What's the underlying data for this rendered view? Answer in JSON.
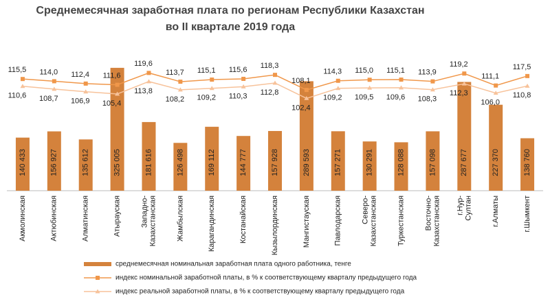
{
  "chart_data": {
    "type": "bar",
    "title": [
      "Среднемесячная заработная плата по регионам Республики Казахстан",
      "во II квартале 2019 года"
    ],
    "categories": [
      "Акмолинская",
      "Актюбинская",
      "Алматинская",
      "Атырауская",
      "Западно-Казахстанская",
      "Жамбылская",
      "Карагандинская",
      "Костанайская",
      "Кызылординская",
      "Мангистауская",
      "Павлодарская",
      "Северо-Казахстанская",
      "Туркестанская",
      "Восточно-Казахстанская",
      "г.Нур-Султан",
      "г.Алматы",
      "г.Шымкент"
    ],
    "series": [
      {
        "name": "среднемесячная номинальная заработная плата одного работника, тенге",
        "type": "bar",
        "color": "#d4823c",
        "values": [
          140433,
          156927,
          135612,
          325005,
          181616,
          126498,
          169112,
          144777,
          157928,
          289593,
          157271,
          130291,
          128088,
          157098,
          287677,
          227370,
          138760
        ],
        "value_labels": [
          "140 433",
          "156 927",
          "135 612",
          "325 005",
          "181 616",
          "126 498",
          "169 112",
          "144 777",
          "157 928",
          "289 593",
          "157 271",
          "130 291",
          "128 088",
          "157 098",
          "287 677",
          "227 370",
          "138 760"
        ]
      },
      {
        "name": "индекс номинальной заработной платы, в % к соответствующему кварталу предыдущего года",
        "type": "line",
        "axis": "y2",
        "color": "#f0974a",
        "marker": "square",
        "values": [
          115.5,
          114.0,
          112.4,
          111.6,
          119.6,
          113.7,
          115.1,
          115.6,
          118.3,
          108.1,
          114.3,
          115.0,
          115.1,
          113.9,
          119.2,
          111.1,
          117.5
        ],
        "value_labels": [
          "115,5",
          "114,0",
          "112,4",
          "111,6",
          "119,6",
          "113,7",
          "115,1",
          "115,6",
          "118,3",
          "108,1",
          "114,3",
          "115,0",
          "115,1",
          "113,9",
          "119,2",
          "111,1",
          "117,5"
        ]
      },
      {
        "name": "индекс реальной заработной платы, в % к соответствующему кварталу предыдущего года",
        "type": "line",
        "axis": "y2",
        "color": "#f7c29a",
        "marker": "triangle",
        "values": [
          110.6,
          108.7,
          106.9,
          105.4,
          113.8,
          108.2,
          109.2,
          110.3,
          112.8,
          102.4,
          109.2,
          109.5,
          109.6,
          108.3,
          112.3,
          106.0,
          110.8
        ],
        "value_labels": [
          "110,6",
          "108,7",
          "106,9",
          "105,4",
          "113,8",
          "108,2",
          "109,2",
          "110,3",
          "112,8",
          "102,4",
          "109,2",
          "109,5",
          "109,6",
          "108,3",
          "112,3",
          "106,0",
          "110,8"
        ]
      }
    ],
    "ylim": [
      0,
      450000
    ],
    "y2lim": [
      40,
      155
    ],
    "grid": false
  }
}
